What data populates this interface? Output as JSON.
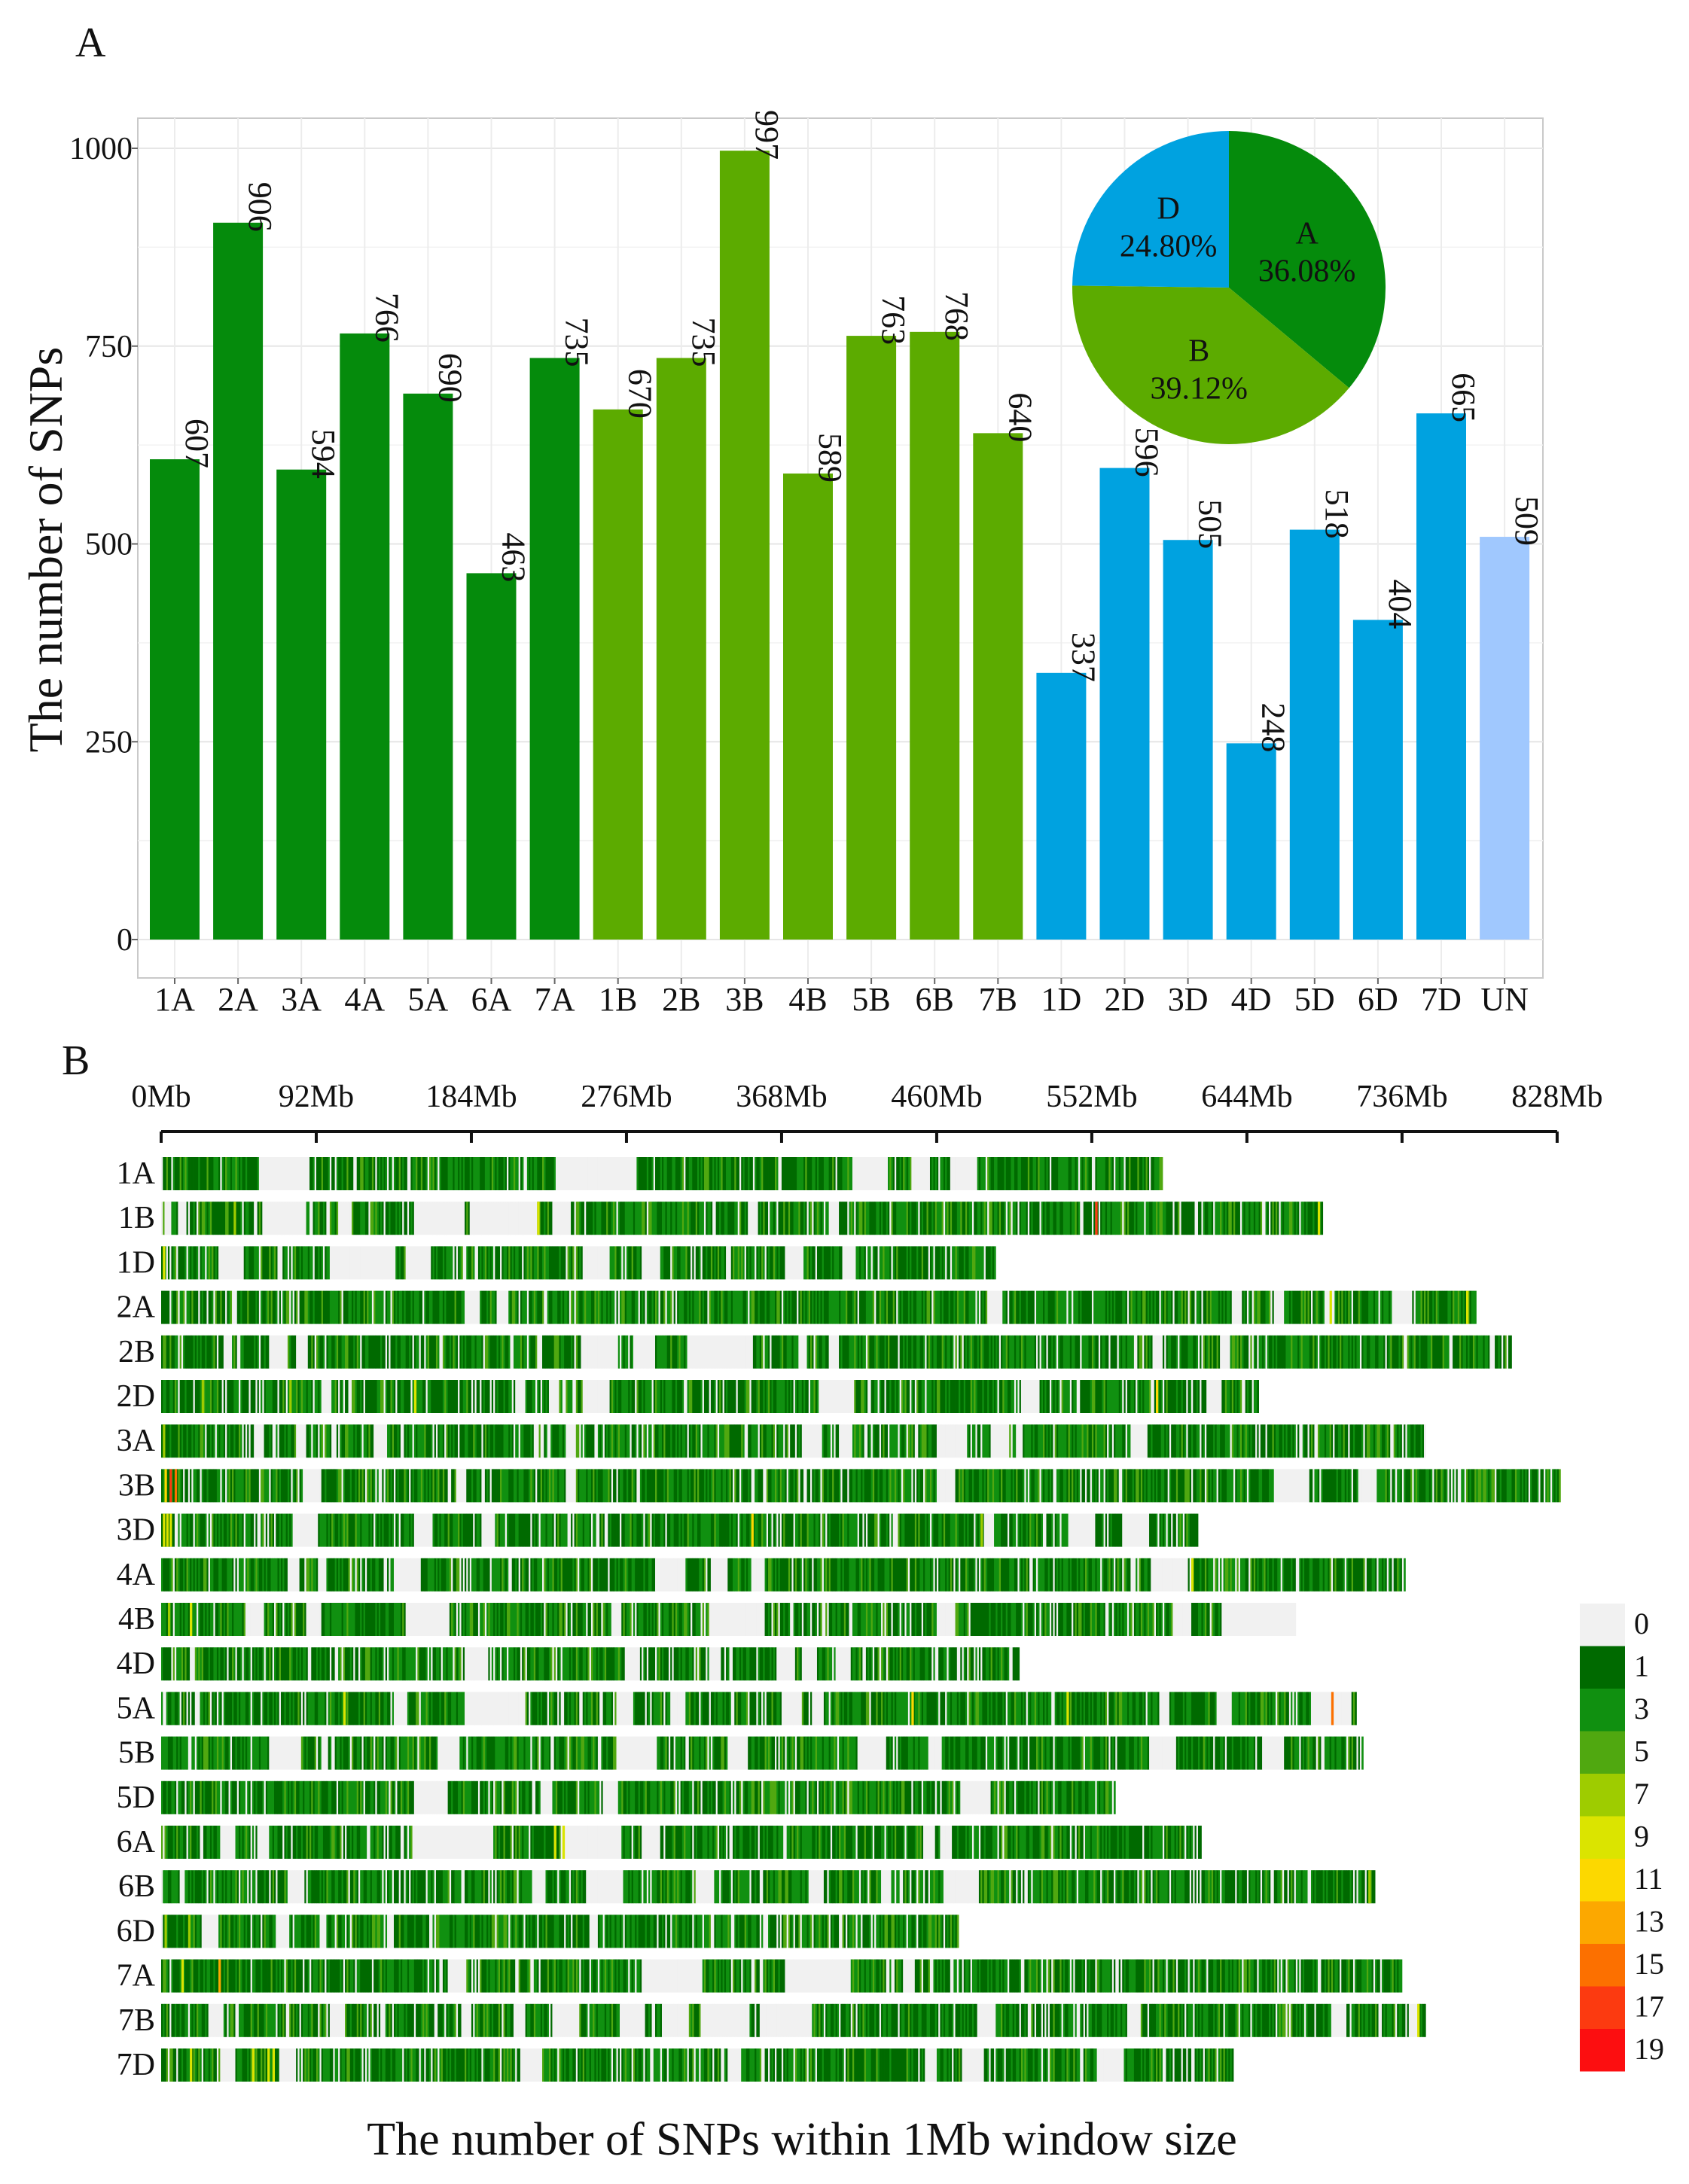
{
  "panel_a_label": "A",
  "panel_b_label": "B",
  "colors": {
    "A": "#058b0c",
    "B": "#5cab00",
    "D": "#00a2e0",
    "UN": "#a0c8fe",
    "empty": "#f1f1f1",
    "density_gradient": [
      "#f1f1f1",
      "#006a00",
      "#109010",
      "#50a810",
      "#9ecc00",
      "#dbe400",
      "#fcd800",
      "#fca800",
      "#fc7000",
      "#fc3a10",
      "#fc0e10"
    ]
  },
  "chart_data": [
    {
      "type": "bar",
      "panel": "A",
      "ylabel": "The number of SNPs",
      "xlabel": "",
      "ylim": [
        0,
        1000
      ],
      "yticks": [
        0,
        250,
        500,
        750,
        1000
      ],
      "ytick_labels": [
        "0",
        "250",
        "500",
        "750",
        "1000"
      ],
      "grid": true,
      "categories": [
        "1A",
        "2A",
        "3A",
        "4A",
        "5A",
        "6A",
        "7A",
        "1B",
        "2B",
        "3B",
        "4B",
        "5B",
        "6B",
        "7B",
        "1D",
        "2D",
        "3D",
        "4D",
        "5D",
        "6D",
        "7D",
        "UN"
      ],
      "values": [
        607,
        906,
        594,
        766,
        690,
        463,
        735,
        670,
        735,
        997,
        589,
        763,
        768,
        640,
        337,
        596,
        505,
        248,
        518,
        404,
        665,
        509
      ],
      "genome": [
        "A",
        "A",
        "A",
        "A",
        "A",
        "A",
        "A",
        "B",
        "B",
        "B",
        "B",
        "B",
        "B",
        "B",
        "D",
        "D",
        "D",
        "D",
        "D",
        "D",
        "D",
        "UN"
      ]
    },
    {
      "type": "pie",
      "panel": "A-inset",
      "slices": [
        {
          "label": "A",
          "value": 36.08,
          "text": "36.08%",
          "color": "#058b0c"
        },
        {
          "label": "B",
          "value": 39.12,
          "text": "39.12%",
          "color": "#5cab00"
        },
        {
          "label": "D",
          "value": 24.8,
          "text": "24.80%",
          "color": "#00a2e0"
        }
      ]
    },
    {
      "type": "heatmap",
      "panel": "B",
      "title": "The number of SNPs within 1Mb window size",
      "x_unit": "Mb",
      "xlim": [
        0,
        828
      ],
      "xticks": [
        0,
        92,
        184,
        276,
        368,
        460,
        552,
        644,
        736,
        828
      ],
      "xtick_labels": [
        "0Mb",
        "92Mb",
        "184Mb",
        "276Mb",
        "368Mb",
        "460Mb",
        "552Mb",
        "644Mb",
        "736Mb",
        "828Mb"
      ],
      "legend_values": [
        "0",
        "1",
        "3",
        "5",
        "7",
        "9",
        "11",
        "13",
        "15",
        "17",
        "19"
      ],
      "legend_position": "right",
      "chromosomes": [
        {
          "name": "1A",
          "length_mb": 594,
          "gaps": [
            [
              58,
              87
            ],
            [
              234,
              281
            ],
            [
              410,
              430
            ],
            [
              445,
              455
            ],
            [
              483,
              468
            ]
          ]
        },
        {
          "name": "1B",
          "length_mb": 689,
          "gaps": [
            [
              2,
              5
            ],
            [
              10,
              14
            ],
            [
              60,
              85
            ],
            [
              105,
              112
            ],
            [
              150,
              179
            ],
            [
              183,
              222
            ],
            [
              232,
              242
            ],
            [
              348,
              353
            ],
            [
              396,
              401
            ]
          ],
          "hot": [
            [
              43,
              7
            ],
            [
              223,
              9
            ],
            [
              554,
              17
            ],
            [
              686,
              9
            ]
          ]
        },
        {
          "name": "1D",
          "length_mb": 495,
          "gaps": [
            [
              34,
              48
            ],
            [
              100,
              138
            ],
            [
              145,
              158
            ],
            [
              250,
              265
            ],
            [
              285,
              295
            ],
            [
              370,
              380
            ],
            [
              410,
              405
            ]
          ],
          "hot": [
            [
              1,
              9
            ]
          ]
        },
        {
          "name": "2A",
          "length_mb": 780,
          "gaps": [
            [
              180,
              188
            ],
            [
              200,
              205
            ],
            [
              490,
              498
            ],
            [
              635,
              640
            ],
            [
              660,
              665
            ],
            [
              690,
              695
            ],
            [
              730,
              740
            ]
          ],
          "hot": [
            [
              693,
              9
            ],
            [
              774,
              9
            ]
          ]
        },
        {
          "name": "2B",
          "length_mb": 801,
          "gaps": [
            [
              37,
              41
            ],
            [
              64,
              74
            ],
            [
              80,
              86
            ],
            [
              223,
              225
            ],
            [
              250,
              270
            ],
            [
              280,
              292
            ],
            [
              312,
              325
            ],
            [
              325,
              350
            ],
            [
              378,
              382
            ],
            [
              396,
              401
            ],
            [
              588,
              593
            ],
            [
              628,
              633
            ]
          ]
        },
        {
          "name": "2D",
          "length_mb": 651,
          "gaps": [
            [
              95,
              100
            ],
            [
              210,
              215
            ],
            [
              230,
              235
            ],
            [
              250,
              265
            ],
            [
              390,
              410
            ],
            [
              510,
              520
            ],
            [
              620,
              628
            ]
          ],
          "hot": [
            [
              24,
              7
            ],
            [
              76,
              7
            ],
            [
              150,
              9
            ],
            [
              590,
              11
            ]
          ]
        },
        {
          "name": "3A",
          "length_mb": 750,
          "gaps": [
            [
              55,
              60
            ],
            [
              80,
              85
            ],
            [
              126,
              133
            ],
            [
              240,
              245
            ],
            [
              380,
              390
            ],
            [
              402,
              407
            ],
            [
              460,
              475
            ],
            [
              492,
              502
            ],
            [
              507,
              510
            ],
            [
              575,
              584
            ]
          ],
          "hot": [
            [
              1,
              7
            ],
            [
              715,
              5
            ]
          ]
        },
        {
          "name": "3B",
          "length_mb": 830,
          "gaps": [
            [
              84,
              94
            ],
            [
              175,
              180
            ],
            [
              240,
              245
            ],
            [
              460,
              470
            ],
            [
              660,
              680
            ],
            [
              710,
              720
            ]
          ],
          "hot": [
            [
              2,
              11
            ],
            [
              5,
              17
            ],
            [
              8,
              15
            ]
          ]
        },
        {
          "name": "3D",
          "length_mb": 615,
          "gaps": [
            [
              78,
              92
            ],
            [
              150,
              160
            ],
            [
              190,
              197
            ],
            [
              488,
              493
            ],
            [
              538,
              553
            ],
            [
              570,
              580
            ],
            [
              580,
              585
            ]
          ],
          "hot": [
            [
              1,
              9
            ],
            [
              3,
              9
            ],
            [
              5,
              9
            ],
            [
              350,
              11
            ],
            [
              486,
              7
            ]
          ]
        },
        {
          "name": "4A",
          "length_mb": 738,
          "gaps": [
            [
              75,
              81
            ],
            [
              93,
              97
            ],
            [
              138,
              153
            ],
            [
              294,
              310
            ],
            [
              326,
              335
            ],
            [
              350,
              357
            ],
            [
              587,
              595
            ],
            [
              595,
              608
            ]
          ],
          "hot": [
            [
              611,
              9
            ]
          ]
        },
        {
          "name": "4B",
          "length_mb": 673,
          "gaps": [
            [
              50,
              60
            ],
            [
              86,
              94
            ],
            [
              145,
              170
            ],
            [
              267,
              272
            ],
            [
              325,
              357
            ],
            [
              460,
              470
            ],
            [
              600,
              610
            ],
            [
              630,
              672
            ]
          ],
          "hot": [
            [
              4,
              7
            ],
            [
              17,
              9
            ]
          ]
        },
        {
          "name": "4D",
          "length_mb": 509,
          "gaps": [
            [
              180,
              193
            ],
            [
              275,
              283
            ],
            [
              325,
              331
            ],
            [
              365,
              374
            ],
            [
              380,
              387
            ],
            [
              400,
              408
            ]
          ]
        },
        {
          "name": "5A",
          "length_mb": 709,
          "gaps": [
            [
              138,
              145
            ],
            [
              180,
              199
            ],
            [
              199,
              215
            ],
            [
              270,
              279
            ],
            [
              302,
              310
            ],
            [
              369,
              378
            ],
            [
              386,
              392
            ],
            [
              592,
              596
            ],
            [
              627,
              634
            ],
            [
              682,
              705
            ]
          ],
          "hot": [
            [
              108,
              9
            ],
            [
              445,
              11
            ],
            [
              537,
              9
            ],
            [
              694,
              15
            ]
          ]
        },
        {
          "name": "5B",
          "length_mb": 713,
          "gaps": [
            [
              64,
              82
            ],
            [
              95,
              98
            ],
            [
              164,
              176
            ],
            [
              270,
              292
            ],
            [
              337,
              347
            ],
            [
              413,
              429
            ],
            [
              455,
              462
            ],
            [
              586,
              601
            ],
            [
              653,
              665
            ]
          ]
        },
        {
          "name": "5D",
          "length_mb": 566,
          "gaps": [
            [
              150,
              168
            ],
            [
              225,
              231
            ],
            [
              262,
              268
            ],
            [
              474,
              490
            ]
          ]
        },
        {
          "name": "6A",
          "length_mb": 617,
          "gaps": [
            [
              35,
              42
            ],
            [
              57,
              63
            ],
            [
              149,
              196
            ],
            [
              237,
              272
            ],
            [
              285,
              295
            ],
            [
              462,
              468
            ],
            [
              452,
              457
            ]
          ],
          "hot": [
            [
              233,
              9
            ],
            [
              238,
              9
            ]
          ]
        },
        {
          "name": "6B",
          "length_mb": 720,
          "gaps": [
            [
              75,
              84
            ],
            [
              221,
              227
            ],
            [
              253,
              273
            ],
            [
              317,
              327
            ],
            [
              384,
              392
            ],
            [
              427,
              432
            ],
            [
              419,
              419
            ],
            [
              464,
              484
            ],
            [
              510,
              510
            ],
            [
              513,
              513
            ]
          ],
          "hot": [
            [
              716,
              7
            ]
          ]
        },
        {
          "name": "6D",
          "length_mb": 473,
          "gaps": [
            [
              24,
              33
            ],
            [
              68,
              75
            ],
            [
              94,
              97
            ],
            [
              134,
              137
            ],
            [
              254,
              258
            ]
          ],
          "hot": [
            [
              2,
              7
            ],
            [
              16,
              7
            ]
          ]
        },
        {
          "name": "7A",
          "length_mb": 736,
          "gaps": [
            [
              170,
              180
            ],
            [
              285,
              320
            ],
            [
              370,
              408
            ],
            [
              440,
              446
            ]
          ],
          "hot": [
            [
              12,
              9
            ],
            [
              34,
              13
            ]
          ]
        },
        {
          "name": "7B",
          "length_mb": 750,
          "gaps": [
            [
              30,
              35
            ],
            [
              100,
              108
            ],
            [
              178,
              183
            ],
            [
              210,
              215
            ],
            [
              232,
              245
            ],
            [
              272,
              286
            ],
            [
              297,
              312
            ],
            [
              320,
              347
            ],
            [
              355,
              385
            ],
            [
              484,
              494
            ],
            [
              574,
              580
            ],
            [
              694,
              700
            ],
            [
              740,
              745
            ]
          ],
          "hot": [
            [
              745,
              9
            ]
          ]
        },
        {
          "name": "7D",
          "length_mb": 636,
          "gaps": [
            [
              35,
              43
            ],
            [
              70,
              79
            ],
            [
              213,
              225
            ],
            [
              336,
              342
            ],
            [
              453,
              459
            ],
            [
              475,
              487
            ],
            [
              500,
              500
            ],
            [
              555,
              570
            ]
          ],
          "hot": [
            [
              17,
              9
            ],
            [
              54,
              9
            ],
            [
              63,
              9
            ],
            [
              66,
              9
            ]
          ]
        }
      ]
    }
  ]
}
